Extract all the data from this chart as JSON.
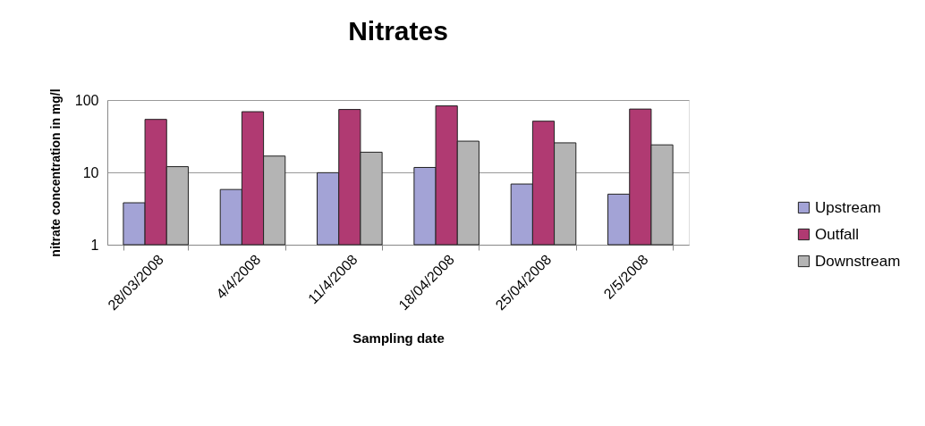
{
  "chart_data": {
    "type": "bar",
    "title": "Nitrates",
    "xlabel": "Sampling date",
    "ylabel": "nitrate concentration in mg/l",
    "categories": [
      "28/03/2008",
      "4/4/2008",
      "11/4/2008",
      "18/04/2008",
      "25/04/2008",
      "2/5/2008"
    ],
    "series": [
      {
        "name": "Upstream",
        "color": "#a3a3d6",
        "values": [
          3.8,
          5.8,
          9.9,
          11.7,
          6.9,
          5.0
        ]
      },
      {
        "name": "Outfall",
        "color": "#b03a72",
        "values": [
          54,
          69,
          74,
          83,
          51,
          75
        ]
      },
      {
        "name": "Downstream",
        "color": "#b4b4b4",
        "values": [
          12,
          16.8,
          19,
          27,
          25.6,
          24
        ]
      }
    ],
    "log": true,
    "ylim": [
      1,
      100
    ],
    "yticks": [
      1,
      10,
      100
    ],
    "grid": "y",
    "legend": "right"
  }
}
